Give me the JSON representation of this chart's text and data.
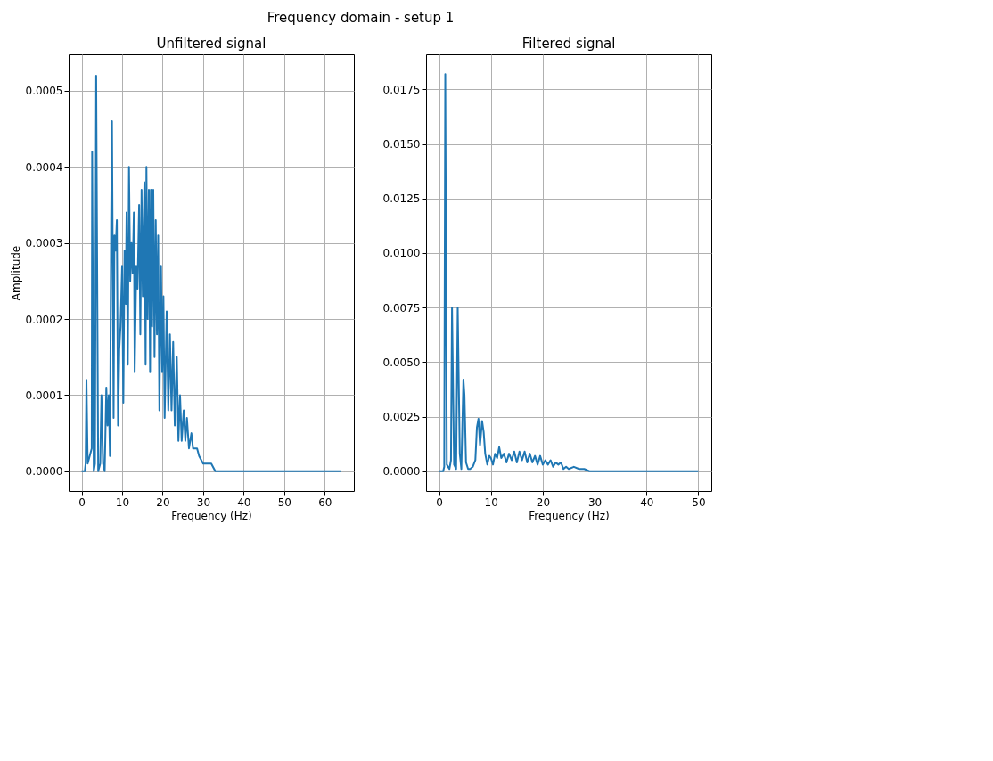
{
  "chart_data": [
    {
      "type": "line",
      "title": "Frequency domain - setup 1",
      "subtitle": "Unfiltered signal",
      "xlabel": "Frequency (Hz)",
      "ylabel": "Amplitude",
      "xlim": [
        -3.2,
        67.2
      ],
      "ylim": [
        -2.6e-05,
        0.000548
      ],
      "xticks": [
        0,
        10,
        20,
        30,
        40,
        50,
        60
      ],
      "yticks": [
        {
          "value": 0,
          "label": "0.0000"
        },
        {
          "value": 0.0001,
          "label": "0.0001"
        },
        {
          "value": 0.0002,
          "label": "0.0002"
        },
        {
          "value": 0.0003,
          "label": "0.0003"
        },
        {
          "value": 0.0004,
          "label": "0.0004"
        },
        {
          "value": 0.0005,
          "label": "0.0005"
        }
      ],
      "grid": true,
      "x": [
        0,
        0.8,
        1.0,
        1.2,
        1.5,
        2.0,
        2.5,
        2.6,
        3.0,
        3.3,
        3.6,
        4.1,
        4.6,
        4.9,
        5.3,
        5.7,
        6.1,
        6.4,
        6.7,
        7.0,
        7.3,
        7.5,
        7.9,
        8.1,
        8.4,
        8.7,
        9.0,
        9.3,
        9.6,
        10.0,
        10.3,
        10.6,
        10.9,
        11.1,
        11.4,
        11.7,
        12.0,
        12.3,
        12.6,
        12.9,
        13.1,
        13.5,
        13.8,
        14.2,
        14.5,
        14.8,
        15.1,
        15.5,
        15.8,
        16.0,
        16.3,
        16.6,
        16.9,
        17.1,
        17.4,
        17.7,
        18.0,
        18.3,
        18.6,
        18.9,
        19.2,
        19.6,
        19.9,
        20.2,
        20.5,
        21.0,
        21.4,
        21.8,
        22.2,
        22.6,
        23.0,
        23.5,
        23.9,
        24.3,
        24.7,
        25.2,
        25.6,
        26.0,
        26.5,
        27.1,
        27.5,
        28.5,
        29,
        30,
        31,
        32,
        33,
        35,
        40,
        64
      ],
      "series": [
        {
          "color": "#1f77b4",
          "values": [
            0,
            0,
            1e-05,
            0.00012,
            1e-05,
            2e-05,
            3e-05,
            0.00042,
            0,
            1e-05,
            0.00052,
            0,
            1e-05,
            0.0001,
            1e-05,
            0,
            0.00011,
            6e-05,
            0.0001,
            2e-05,
            0.00033,
            0.00046,
            7e-05,
            0.00031,
            0.00029,
            0.00033,
            6e-05,
            0.00016,
            0.00019,
            0.00027,
            9e-05,
            0.00029,
            0.00022,
            0.00034,
            0.00014,
            0.0004,
            0.00025,
            0.0003,
            0.00026,
            0.00034,
            0.00013,
            0.00027,
            0.00024,
            0.00035,
            0.00018,
            0.00037,
            0.00023,
            0.00038,
            0.00014,
            0.0004,
            0.0002,
            0.00037,
            0.00013,
            0.00037,
            0.00019,
            0.00037,
            0.00015,
            0.00033,
            0.00018,
            0.00031,
            8e-05,
            0.00027,
            0.00013,
            0.00023,
            7e-05,
            0.00021,
            8e-05,
            0.00018,
            8e-05,
            0.00017,
            6e-05,
            0.00015,
            4e-05,
            0.0001,
            4e-05,
            8e-05,
            4e-05,
            7e-05,
            3e-05,
            5e-05,
            3e-05,
            3e-05,
            2e-05,
            1e-05,
            1e-05,
            1e-05,
            0,
            0,
            0,
            0
          ]
        }
      ]
    },
    {
      "type": "line",
      "subtitle": "Filtered signal",
      "xlabel": "Frequency (Hz)",
      "xlim": [
        -2.5,
        52.5
      ],
      "ylim": [
        -0.00091,
        0.01911
      ],
      "xticks": [
        0,
        10,
        20,
        30,
        40,
        50
      ],
      "yticks": [
        {
          "value": 0,
          "label": "0.0000"
        },
        {
          "value": 0.0025,
          "label": "0.0025"
        },
        {
          "value": 0.005,
          "label": "0.0050"
        },
        {
          "value": 0.0075,
          "label": "0.0075"
        },
        {
          "value": 0.01,
          "label": "0.0100"
        },
        {
          "value": 0.0125,
          "label": "0.0125"
        },
        {
          "value": 0.015,
          "label": "0.0150"
        },
        {
          "value": 0.0175,
          "label": "0.0175"
        }
      ],
      "grid": true,
      "x": [
        0,
        0.8,
        1.0,
        1.2,
        1.5,
        2.0,
        2.3,
        2.5,
        2.9,
        3.3,
        3.6,
        4.0,
        4.3,
        4.7,
        4.9,
        5.2,
        5.6,
        6.0,
        6.5,
        7.0,
        7.3,
        7.6,
        7.9,
        8.3,
        8.6,
        8.9,
        9.3,
        9.7,
        10.0,
        10.4,
        10.8,
        11.2,
        11.6,
        12.0,
        12.5,
        13.0,
        13.5,
        14.0,
        14.5,
        15.0,
        15.5,
        16.0,
        16.5,
        17.0,
        17.5,
        18.0,
        18.5,
        19,
        19.5,
        20,
        20.5,
        21,
        21.5,
        22,
        22.5,
        23,
        23.5,
        24,
        24.5,
        25,
        26,
        27,
        28,
        29,
        30,
        32,
        35,
        50
      ],
      "series": [
        {
          "color": "#1f77b4",
          "values": [
            0,
            0,
            0.0002,
            0.0182,
            0.0003,
            0.0001,
            0.0005,
            0.0075,
            0.0003,
            0.0001,
            0.0075,
            0.0008,
            0.0001,
            0.0042,
            0.0035,
            0.0004,
            0.0001,
            0.0001,
            0.0002,
            0.0005,
            0.002,
            0.0024,
            0.0012,
            0.0023,
            0.0018,
            0.0008,
            0.0003,
            0.0007,
            0.0006,
            0.0003,
            0.0008,
            0.0006,
            0.0011,
            0.0006,
            0.0008,
            0.0004,
            0.0008,
            0.0005,
            0.0009,
            0.0004,
            0.0009,
            0.0005,
            0.0009,
            0.0004,
            0.0008,
            0.0004,
            0.0007,
            0.0003,
            0.0007,
            0.0003,
            0.0005,
            0.0003,
            0.0005,
            0.0002,
            0.0004,
            0.0003,
            0.0004,
            0.0001,
            0.0002,
            0.0001,
            0.0002,
            0.0001,
            0.0001,
            0,
            0,
            0,
            0,
            0
          ]
        }
      ]
    }
  ]
}
